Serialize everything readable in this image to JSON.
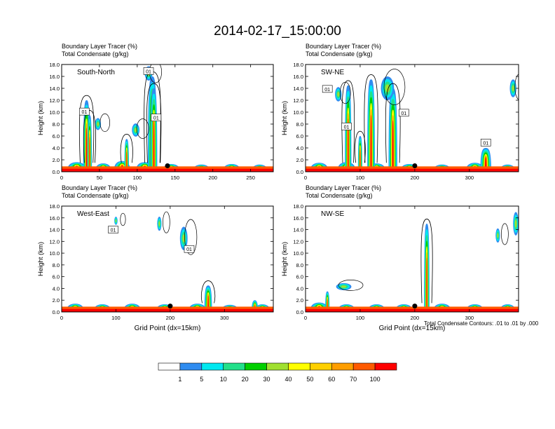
{
  "title": "2014-02-17_15:00:00",
  "footer_note": "Total Condensate Contours: .01 to .01 by .000",
  "x_axis_title": "Grid Point (dx=15km)",
  "colors": {
    "levels": [
      "#ffffff",
      "#2f8cf0",
      "#00e8f0",
      "#22e08a",
      "#00d000",
      "#a0e030",
      "#ffff00",
      "#ffd000",
      "#ff9e00",
      "#ff5a00",
      "#ff0000"
    ]
  },
  "colorbar": {
    "labels": [
      "1",
      "5",
      "10",
      "20",
      "30",
      "40",
      "50",
      "60",
      "70",
      "100"
    ]
  },
  "chart_data": [
    {
      "type": "contour",
      "label1": "Boundary Layer Tracer   (%)",
      "label2": "Total Condensate   (g/kg)",
      "section": "South-North",
      "ylabel": "Height (km)",
      "xlabel": "",
      "xlim": [
        0,
        280
      ],
      "ylim": [
        0,
        18
      ],
      "yticks": [
        "0.0",
        "2.0",
        "4.0",
        "6.0",
        "8.0",
        "10.0",
        "12.0",
        "14.0",
        "16.0",
        "18.0"
      ],
      "xticks": [
        {
          "v": 0,
          "t": "0"
        },
        {
          "v": 50,
          "t": "50"
        },
        {
          "v": 100,
          "t": "100"
        },
        {
          "v": 150,
          "t": "150"
        },
        {
          "v": 200,
          "t": "200"
        },
        {
          "v": 250,
          "t": "250"
        }
      ],
      "contour_labels": [
        {
          "x": 115,
          "y": 16.9,
          "t": "01"
        },
        {
          "x": 30,
          "y": 10.1,
          "t": "01"
        },
        {
          "x": 125,
          "y": 9.1,
          "t": "01"
        }
      ],
      "marker": {
        "x": 140,
        "y": 1.0
      },
      "plumes": [
        {
          "x": 20,
          "h": 1.6,
          "w": 26
        },
        {
          "x": 55,
          "h": 1.4,
          "w": 22
        },
        {
          "x": 80,
          "h": 1.8,
          "w": 22
        },
        {
          "x": 110,
          "h": 1.6,
          "w": 24
        },
        {
          "x": 145,
          "h": 1.3,
          "w": 24
        },
        {
          "x": 185,
          "h": 1.2,
          "w": 24
        },
        {
          "x": 225,
          "h": 1.3,
          "w": 24
        },
        {
          "x": 262,
          "h": 1.2,
          "w": 22
        },
        {
          "x": 33,
          "h": 12.0,
          "w": 9
        },
        {
          "x": 37,
          "h": 9.5,
          "w": 6
        },
        {
          "x": 120,
          "h": 16.0,
          "w": 12
        },
        {
          "x": 122,
          "h": 14.0,
          "w": 9
        },
        {
          "x": 86,
          "h": 5.5,
          "w": 6
        }
      ],
      "blobs": [
        {
          "x": 115,
          "y": 16.5,
          "rx": 5,
          "ry": 1.2
        },
        {
          "x": 48,
          "y": 8.0,
          "rx": 4,
          "ry": 1.0
        },
        {
          "x": 98,
          "y": 7.0,
          "rx": 5,
          "ry": 1.1
        }
      ]
    },
    {
      "type": "contour",
      "label1": "Boundary Layer Tracer   (%)",
      "label2": "Total Condensate   (g/kg)",
      "section": "SW-NE",
      "ylabel": "Height (km)",
      "xlabel": "",
      "xlim": [
        0,
        390
      ],
      "ylim": [
        0,
        18
      ],
      "yticks": [
        "0.0",
        "2.0",
        "4.0",
        "6.0",
        "8.0",
        "10.0",
        "12.0",
        "14.0",
        "16.0",
        "18.0"
      ],
      "xticks": [
        {
          "v": 0,
          "t": "0"
        },
        {
          "v": 100,
          "t": "100"
        },
        {
          "v": 200,
          "t": "200"
        },
        {
          "v": 300,
          "t": "300"
        }
      ],
      "contour_labels": [
        {
          "x": 40,
          "y": 13.9,
          "t": "01"
        },
        {
          "x": 75,
          "y": 7.6,
          "t": "01"
        },
        {
          "x": 180,
          "y": 9.9,
          "t": "01"
        },
        {
          "x": 330,
          "y": 4.9,
          "t": "01"
        }
      ],
      "marker": {
        "x": 200,
        "y": 1.0
      },
      "plumes": [
        {
          "x": 25,
          "h": 1.5,
          "w": 34
        },
        {
          "x": 75,
          "h": 1.6,
          "w": 34
        },
        {
          "x": 130,
          "h": 1.4,
          "w": 34
        },
        {
          "x": 190,
          "h": 1.3,
          "w": 34
        },
        {
          "x": 250,
          "h": 1.2,
          "w": 34
        },
        {
          "x": 310,
          "h": 1.5,
          "w": 34
        },
        {
          "x": 370,
          "h": 1.2,
          "w": 30
        },
        {
          "x": 78,
          "h": 14.5,
          "w": 12
        },
        {
          "x": 120,
          "h": 15.5,
          "w": 14
        },
        {
          "x": 160,
          "h": 14.0,
          "w": 16
        },
        {
          "x": 100,
          "h": 6.0,
          "w": 8
        },
        {
          "x": 330,
          "h": 4.0,
          "w": 20
        }
      ],
      "blobs": [
        {
          "x": 150,
          "y": 14.0,
          "rx": 12,
          "ry": 2.0
        },
        {
          "x": 60,
          "y": 13.0,
          "rx": 6,
          "ry": 1.2
        },
        {
          "x": 380,
          "y": 14.0,
          "rx": 6,
          "ry": 1.5
        }
      ]
    },
    {
      "type": "contour",
      "label1": "Boundary Layer Tracer   (%)",
      "label2": "Total Condensate   (g/kg)",
      "section": "West-East",
      "ylabel": "Height (km)",
      "xlabel": "Grid Point (dx=15km)",
      "xlim": [
        0,
        390
      ],
      "ylim": [
        0,
        18
      ],
      "yticks": [
        "0.0",
        "2.0",
        "4.0",
        "6.0",
        "8.0",
        "10.0",
        "12.0",
        "14.0",
        "16.0",
        "18.0"
      ],
      "xticks": [
        {
          "v": 0,
          "t": "0"
        },
        {
          "v": 100,
          "t": "100"
        },
        {
          "v": 200,
          "t": "200"
        },
        {
          "v": 300,
          "t": "300"
        }
      ],
      "contour_labels": [
        {
          "x": 95,
          "y": 14.0,
          "t": "01"
        },
        {
          "x": 235,
          "y": 10.7,
          "t": "01"
        }
      ],
      "marker": {
        "x": 200,
        "y": 1.0
      },
      "plumes": [
        {
          "x": 25,
          "h": 1.4,
          "w": 34
        },
        {
          "x": 75,
          "h": 1.3,
          "w": 34
        },
        {
          "x": 130,
          "h": 1.4,
          "w": 34
        },
        {
          "x": 190,
          "h": 1.3,
          "w": 34
        },
        {
          "x": 250,
          "h": 1.4,
          "w": 34
        },
        {
          "x": 310,
          "h": 1.2,
          "w": 34
        },
        {
          "x": 370,
          "h": 1.3,
          "w": 30
        },
        {
          "x": 270,
          "h": 4.5,
          "w": 14
        },
        {
          "x": 356,
          "h": 2.0,
          "w": 12
        }
      ],
      "blobs": [
        {
          "x": 180,
          "y": 15.0,
          "rx": 4,
          "ry": 1.2
        },
        {
          "x": 225,
          "y": 12.5,
          "rx": 7,
          "ry": 2.0
        },
        {
          "x": 100,
          "y": 15.5,
          "rx": 3,
          "ry": 0.7
        }
      ]
    },
    {
      "type": "contour",
      "label1": "Boundary Layer Tracer   (%)",
      "label2": "Total Condensate   (g/kg)",
      "section": "NW-SE",
      "ylabel": "Height (km)",
      "xlabel": "Grid Point (dx=15km)",
      "xlim": [
        0,
        390
      ],
      "ylim": [
        0,
        18
      ],
      "yticks": [
        "0.0",
        "2.0",
        "4.0",
        "6.0",
        "8.0",
        "10.0",
        "12.0",
        "14.0",
        "16.0",
        "18.0"
      ],
      "xticks": [
        {
          "v": 0,
          "t": "0"
        },
        {
          "v": 100,
          "t": "100"
        },
        {
          "v": 200,
          "t": "200"
        },
        {
          "v": 300,
          "t": "300"
        }
      ],
      "contour_labels": [],
      "marker": {
        "x": 200,
        "y": 1.0
      },
      "plumes": [
        {
          "x": 25,
          "h": 1.6,
          "w": 34
        },
        {
          "x": 75,
          "h": 1.3,
          "w": 34
        },
        {
          "x": 130,
          "h": 1.3,
          "w": 34
        },
        {
          "x": 180,
          "h": 1.3,
          "w": 34
        },
        {
          "x": 250,
          "h": 1.4,
          "w": 34
        },
        {
          "x": 310,
          "h": 1.3,
          "w": 34
        },
        {
          "x": 370,
          "h": 1.3,
          "w": 30
        },
        {
          "x": 222,
          "h": 15.0,
          "w": 10
        },
        {
          "x": 40,
          "h": 3.5,
          "w": 8
        }
      ],
      "blobs": [
        {
          "x": 70,
          "y": 4.3,
          "rx": 14,
          "ry": 0.6
        },
        {
          "x": 352,
          "y": 13.0,
          "rx": 4,
          "ry": 1.2
        },
        {
          "x": 385,
          "y": 15.0,
          "rx": 5,
          "ry": 2.0
        }
      ]
    }
  ]
}
